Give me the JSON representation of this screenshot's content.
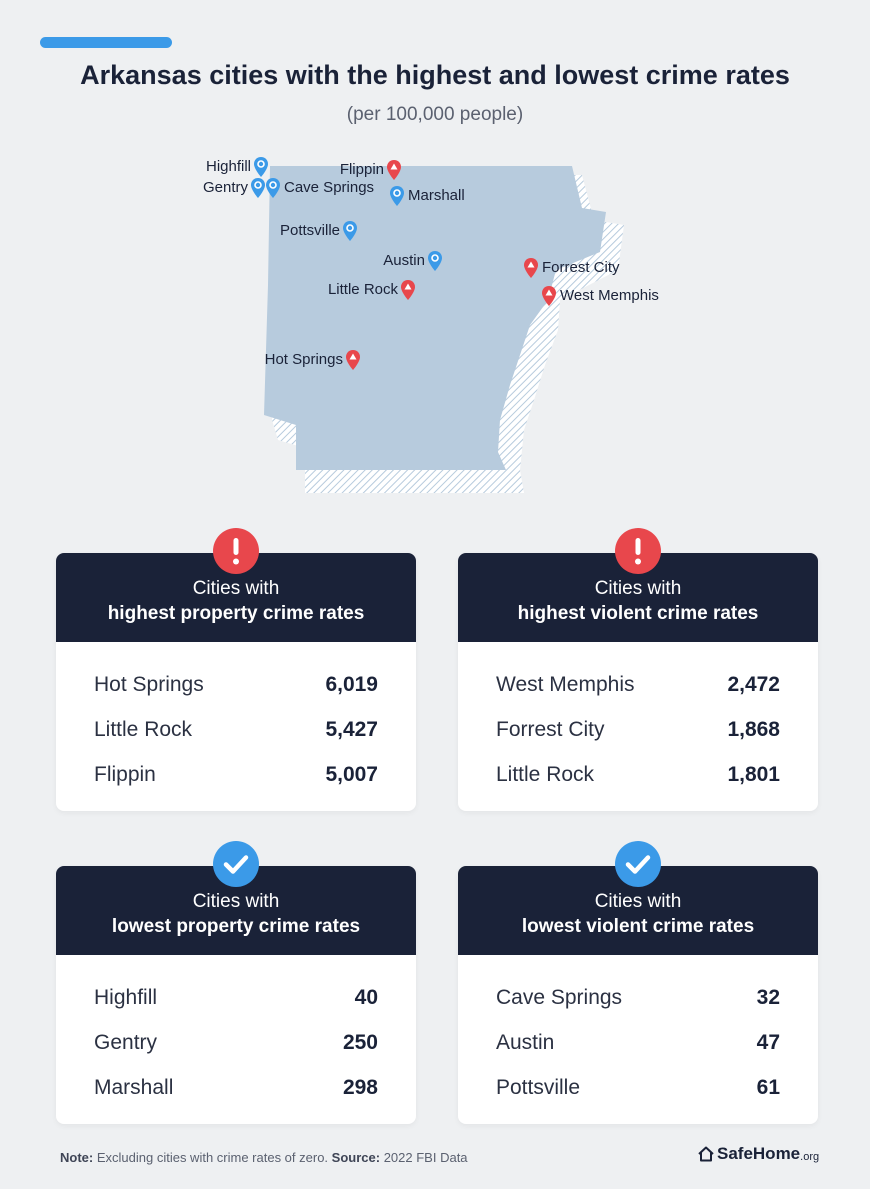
{
  "header": {
    "title": "Arkansas cities with the highest and lowest crime rates",
    "subtitle": "(per 100,000 people)"
  },
  "map": {
    "pins": [
      {
        "label": "Highfill",
        "type": "low",
        "color": "#3b9ae8"
      },
      {
        "label": "Gentry",
        "type": "low",
        "color": "#3b9ae8"
      },
      {
        "label": "Cave Springs",
        "type": "low",
        "color": "#3b9ae8"
      },
      {
        "label": "Marshall",
        "type": "low",
        "color": "#3b9ae8"
      },
      {
        "label": "Pottsville",
        "type": "low",
        "color": "#3b9ae8"
      },
      {
        "label": "Austin",
        "type": "low",
        "color": "#3b9ae8"
      },
      {
        "label": "Flippin",
        "type": "high",
        "color": "#e8474c"
      },
      {
        "label": "Little Rock",
        "type": "high",
        "color": "#e8474c"
      },
      {
        "label": "Forrest City",
        "type": "high",
        "color": "#e8474c"
      },
      {
        "label": "West Memphis",
        "type": "high",
        "color": "#e8474c"
      },
      {
        "label": "Hot Springs",
        "type": "high",
        "color": "#e8474c"
      }
    ]
  },
  "cards": {
    "high_property": {
      "line1": "Cities with",
      "line2": "highest property crime rates",
      "icon": "exclamation-icon",
      "rows": [
        {
          "city": "Hot Springs",
          "value": "6,019"
        },
        {
          "city": "Little Rock",
          "value": "5,427"
        },
        {
          "city": "Flippin",
          "value": "5,007"
        }
      ]
    },
    "high_violent": {
      "line1": "Cities with",
      "line2": "highest violent crime rates",
      "icon": "exclamation-icon",
      "rows": [
        {
          "city": "West Memphis",
          "value": "2,472"
        },
        {
          "city": "Forrest City",
          "value": "1,868"
        },
        {
          "city": "Little Rock",
          "value": "1,801"
        }
      ]
    },
    "low_property": {
      "line1": "Cities with",
      "line2": "lowest property crime rates",
      "icon": "checkmark-icon",
      "rows": [
        {
          "city": "Highfill",
          "value": "40"
        },
        {
          "city": "Gentry",
          "value": "250"
        },
        {
          "city": "Marshall",
          "value": "298"
        }
      ]
    },
    "low_violent": {
      "line1": "Cities with",
      "line2": "lowest violent crime rates",
      "icon": "checkmark-icon",
      "rows": [
        {
          "city": "Cave Springs",
          "value": "32"
        },
        {
          "city": "Austin",
          "value": "47"
        },
        {
          "city": "Pottsville",
          "value": "61"
        }
      ]
    }
  },
  "footer": {
    "note_label": "Note:",
    "note_text": "Excluding cities with crime rates of zero.",
    "source_label": "Source:",
    "source_text": "2022 FBI Data",
    "brand": "SafeHome",
    "brand_suffix": ".org"
  },
  "colors": {
    "navy": "#1a2238",
    "blue": "#3b9ae8",
    "red": "#e8474c",
    "map_fill": "#b7cbdd"
  }
}
